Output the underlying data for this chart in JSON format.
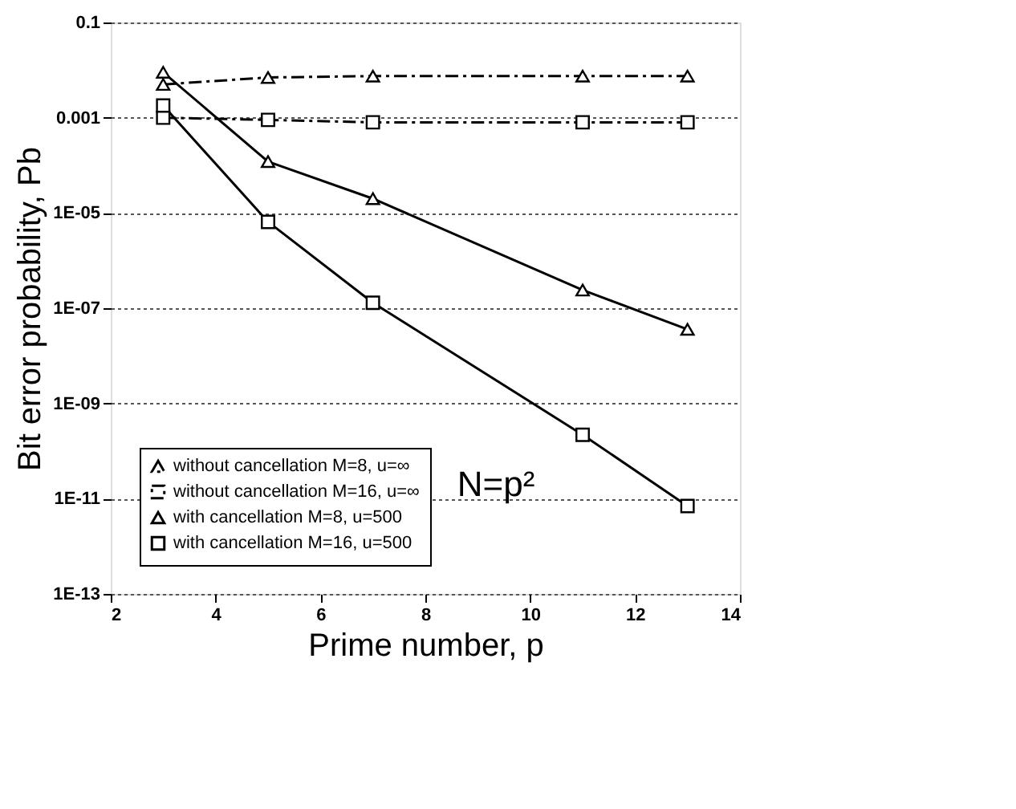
{
  "chart_data": {
    "type": "line",
    "xlabel": "Prime number, p",
    "ylabel": "Bit error probability, Pb",
    "x": [
      3,
      5,
      7,
      11,
      13
    ],
    "series": [
      {
        "name": "without cancellation M=8, u=∞",
        "color": "#000000",
        "marker": "triangle",
        "line_style": "dashed",
        "values": [
          0.005,
          0.007,
          0.0075,
          0.0075,
          0.0075
        ]
      },
      {
        "name": "without cancellation M=16, u=∞",
        "color": "#000000",
        "marker": "square",
        "line_style": "dashed",
        "values": [
          0.001,
          0.0009,
          0.0008,
          0.0008,
          0.0008
        ]
      },
      {
        "name": "with cancellation M=8, u=500",
        "color": "#000000",
        "marker": "triangle",
        "line_style": "solid",
        "values": [
          0.009,
          0.00012,
          2e-05,
          2.4e-07,
          3.6e-08
        ]
      },
      {
        "name": "with cancellation M=16, u=500",
        "color": "#000000",
        "marker": "square",
        "line_style": "solid",
        "values": [
          0.0018,
          6.5e-06,
          1.3e-07,
          2.2e-10,
          7e-12
        ]
      }
    ],
    "xlim": [
      2,
      14
    ],
    "xticks": [
      2,
      4,
      6,
      8,
      10,
      12,
      14
    ],
    "ylim": [
      1e-13,
      0.1
    ],
    "yticks": [
      {
        "value": 0.1,
        "label": "0.1"
      },
      {
        "value": 0.001,
        "label": "0.001"
      },
      {
        "value": 1e-05,
        "label": "1E-05"
      },
      {
        "value": 1e-07,
        "label": "1E-07"
      },
      {
        "value": 1e-09,
        "label": "1E-09"
      },
      {
        "value": 1e-11,
        "label": "1E-11"
      },
      {
        "value": 1e-13,
        "label": "1E-13"
      }
    ],
    "log": "y",
    "grid": "y",
    "legend": "bottom left",
    "annotations": [
      "N=p²"
    ]
  }
}
